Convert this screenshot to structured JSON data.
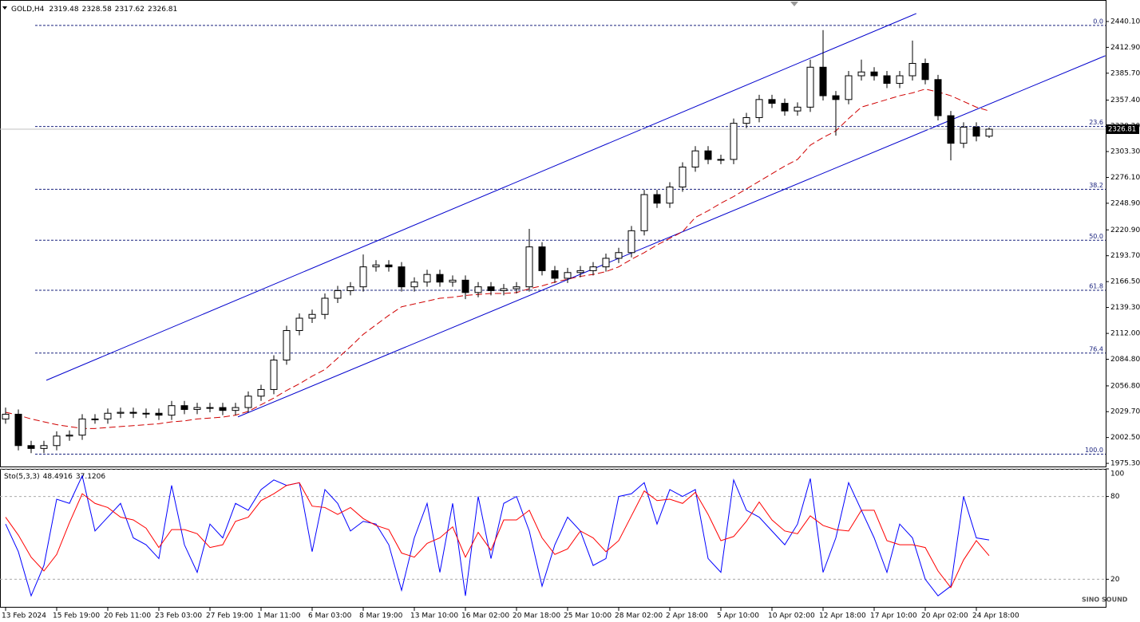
{
  "chart_data": [
    {
      "type": "candlestick",
      "title": "GOLD,H4",
      "categories": [
        "13 Feb 2024",
        null,
        null,
        null,
        "15 Feb 19:00",
        null,
        null,
        null,
        "20 Feb 11:00",
        null,
        null,
        null,
        "23 Feb 03:00",
        null,
        null,
        null,
        "27 Feb 19:00",
        null,
        null,
        null,
        "1 Mar 11:00",
        null,
        null,
        null,
        "6 Mar 03:00",
        null,
        null,
        null,
        "8 Mar 19:00",
        null,
        null,
        null,
        "13 Mar 10:00",
        null,
        null,
        null,
        "16 Mar 02:00",
        null,
        null,
        null,
        "20 Mar 18:00",
        null,
        null,
        null,
        "25 Mar 10:00",
        null,
        null,
        null,
        "28 Mar 02:00",
        null,
        null,
        null,
        "2 Apr 18:00",
        null,
        null,
        null,
        "5 Apr 10:00",
        null,
        null,
        null,
        "10 Apr 02:00",
        null,
        null,
        null,
        "12 Apr 18:00",
        null,
        null,
        null,
        "17 Apr 10:00",
        null,
        null,
        null,
        "20 Apr 02:00",
        null,
        null,
        null,
        "24 Apr 18:00",
        null
      ],
      "open": [
        2022,
        2027,
        1994,
        1991,
        1994,
        2004,
        2005,
        2022,
        2022,
        2028,
        2029,
        2028,
        2028,
        2026,
        2036,
        2032,
        2034,
        2034,
        2031,
        2034,
        2046,
        2053,
        2084,
        2115,
        2128,
        2132,
        2149,
        2157,
        2161,
        2182,
        2184,
        2182,
        2161,
        2166,
        2174,
        2166,
        2168,
        2155,
        2161,
        2157,
        2159,
        2161,
        2203,
        2178,
        2170,
        2176,
        2178,
        2182,
        2191,
        2197,
        2220,
        2258,
        2249,
        2266,
        2287,
        2304,
        2295,
        2295,
        2333,
        2339,
        2358,
        2354,
        2346,
        2350,
        2392,
        2362,
        2358,
        2383,
        2387,
        2383,
        2375,
        2383,
        2396,
        2379,
        2341,
        2312,
        2329,
        2319.48
      ],
      "high": [
        2034,
        2032,
        1999,
        1999,
        2009,
        2010,
        2027,
        2027,
        2033,
        2034,
        2034,
        2033,
        2033,
        2041,
        2041,
        2039,
        2039,
        2039,
        2039,
        2051,
        2058,
        2089,
        2120,
        2133,
        2137,
        2154,
        2162,
        2166,
        2195,
        2189,
        2189,
        2187,
        2171,
        2179,
        2179,
        2173,
        2173,
        2166,
        2166,
        2164,
        2166,
        2222,
        2208,
        2183,
        2181,
        2183,
        2187,
        2196,
        2202,
        2225,
        2263,
        2263,
        2271,
        2292,
        2309,
        2309,
        2300,
        2338,
        2344,
        2363,
        2363,
        2359,
        2355,
        2400,
        2431,
        2367,
        2388,
        2400,
        2392,
        2388,
        2388,
        2420,
        2401,
        2384,
        2346,
        2334,
        2334,
        2328.58
      ],
      "low": [
        2017,
        1989,
        1986,
        1986,
        1989,
        1999,
        2000,
        2017,
        2017,
        2023,
        2023,
        2023,
        2021,
        2021,
        2027,
        2027,
        2029,
        2026,
        2026,
        2029,
        2041,
        2048,
        2079,
        2110,
        2123,
        2127,
        2144,
        2152,
        2156,
        2177,
        2177,
        2156,
        2156,
        2161,
        2161,
        2161,
        2148,
        2150,
        2152,
        2152,
        2154,
        2156,
        2173,
        2165,
        2165,
        2171,
        2173,
        2177,
        2186,
        2192,
        2215,
        2244,
        2244,
        2261,
        2282,
        2290,
        2290,
        2290,
        2328,
        2334,
        2349,
        2341,
        2341,
        2345,
        2357,
        2320,
        2353,
        2378,
        2378,
        2370,
        2370,
        2378,
        2374,
        2336,
        2294,
        2307,
        2314,
        2317.62
      ],
      "close": [
        2027,
        1994,
        1991,
        1994,
        2004,
        2005,
        2022,
        2022,
        2028,
        2029,
        2028,
        2028,
        2026,
        2036,
        2032,
        2034,
        2034,
        2031,
        2034,
        2046,
        2053,
        2084,
        2115,
        2128,
        2132,
        2149,
        2157,
        2161,
        2182,
        2184,
        2182,
        2161,
        2166,
        2174,
        2166,
        2168,
        2155,
        2161,
        2157,
        2159,
        2161,
        2203,
        2178,
        2170,
        2176,
        2178,
        2182,
        2191,
        2197,
        2220,
        2258,
        2249,
        2266,
        2287,
        2304,
        2295,
        2295,
        2333,
        2339,
        2358,
        2354,
        2346,
        2350,
        2392,
        2362,
        2358,
        2383,
        2387,
        2383,
        2375,
        2383,
        2396,
        2379,
        2341,
        2312,
        2329,
        2319.48,
        2326.81
      ],
      "ma": {
        "color": "#d00000",
        "values": [
          2029,
          2026,
          2022,
          2019,
          2016,
          2014,
          2012,
          2012,
          2013,
          2014,
          2015,
          2016,
          2017,
          2019,
          2020,
          2022,
          2023,
          2024,
          2026,
          2030,
          2037,
          2044,
          2052,
          2059,
          2067,
          2074,
          2086,
          2098,
          2111,
          2121,
          2131,
          2140,
          2143,
          2146,
          2149,
          2150,
          2152,
          2153,
          2154,
          2154,
          2155,
          2159,
          2162,
          2166,
          2169,
          2172,
          2174,
          2177,
          2182,
          2190,
          2197,
          2205,
          2212,
          2219,
          2234,
          2241,
          2249,
          2256,
          2264,
          2272,
          2280,
          2288,
          2295,
          2310,
          2318,
          2325,
          2338,
          2350,
          2354,
          2358,
          2362,
          2365,
          2369,
          2366,
          2362,
          2356,
          2350,
          2346
        ]
      },
      "ylim": [
        1972,
        2462.7
      ],
      "yticks": [
        {
          "value": 2440.1,
          "label": "2440.10"
        },
        {
          "value": 2412.9,
          "label": "2412.90"
        },
        {
          "value": 2385.7,
          "label": "2385.70"
        },
        {
          "value": 2357.4,
          "label": "2357.40"
        },
        {
          "value": 2330.2,
          "label": "2330.20"
        },
        {
          "value": 2303.3,
          "label": "2303.30"
        },
        {
          "value": 2276.1,
          "label": "2276.10"
        },
        {
          "value": 2248.9,
          "label": "2248.90"
        },
        {
          "value": 2220.9,
          "label": "2220.90"
        },
        {
          "value": 2193.7,
          "label": "2193.70"
        },
        {
          "value": 2166.5,
          "label": "2166.50"
        },
        {
          "value": 2139.3,
          "label": "2139.30"
        },
        {
          "value": 2112,
          "label": "2112.00"
        },
        {
          "value": 2084.8,
          "label": "2084.80"
        },
        {
          "value": 2056.8,
          "label": "2056.80"
        },
        {
          "value": 2029.7,
          "label": "2029.70"
        },
        {
          "value": 2002.5,
          "label": "2002.50"
        },
        {
          "value": 1975.3,
          "label": "1975.30"
        }
      ],
      "fibonacci": [
        {
          "label": "0.0",
          "price": 2436
        },
        {
          "label": "23.6",
          "price": 2329.6
        },
        {
          "label": "38.2",
          "price": 2263.6
        },
        {
          "label": "50.0",
          "price": 2210
        },
        {
          "label": "61.8",
          "price": 2157.4
        },
        {
          "label": "76.4",
          "price": 2091.3
        },
        {
          "label": "100.0",
          "price": 1985
        }
      ],
      "fib_color": "#1a237e",
      "trendlines": [
        {
          "from": [
            3.19,
            2062.7
          ],
          "to": [
            71.3,
            2448.5
          ]
        },
        {
          "from": [
            18.19,
            2024.2
          ],
          "to": [
            86.1,
            2404.1
          ]
        }
      ],
      "trend_color": "#0000cd",
      "watermark": "SINO SOUND"
    },
    {
      "type": "line",
      "title": "Sto(5,3,3)",
      "series": [
        {
          "color": "#0000ff",
          "values": [
            60,
            40,
            8,
            30,
            78,
            75,
            95,
            55,
            65,
            75,
            50,
            45,
            35,
            88,
            45,
            25,
            60,
            50,
            75,
            70,
            85,
            92,
            88,
            90,
            40,
            85,
            75,
            55,
            62,
            60,
            45,
            12,
            50,
            75,
            25,
            75,
            8,
            80,
            35,
            75,
            80,
            55,
            15,
            45,
            65,
            55,
            30,
            35,
            80,
            82,
            90,
            60,
            85,
            80,
            85,
            35,
            25,
            92,
            70,
            65,
            55,
            45,
            60,
            93,
            25,
            50,
            90,
            70,
            50,
            25,
            60,
            50,
            20,
            8,
            15,
            80,
            50,
            48.4916
          ]
        },
        {
          "color": "#ff0000",
          "values": [
            65,
            52,
            36,
            26,
            38,
            61,
            82,
            75,
            72,
            65,
            63,
            57,
            43,
            56,
            56,
            53,
            43,
            45,
            62,
            65,
            77,
            82,
            88,
            90,
            73,
            72,
            67,
            72,
            64,
            59,
            56,
            39,
            36,
            46,
            50,
            58,
            36,
            54,
            41,
            63,
            63,
            70,
            50,
            38,
            42,
            55,
            50,
            40,
            48,
            66,
            84,
            77,
            78,
            75,
            83,
            67,
            48,
            51,
            62,
            76,
            63,
            55,
            53,
            66,
            59,
            56,
            55,
            70,
            70,
            48,
            45,
            45,
            43,
            26,
            14,
            34,
            48,
            37.1206
          ]
        }
      ],
      "ylim": [
        0,
        100
      ],
      "yticks": [
        100,
        80,
        20
      ]
    }
  ]
}
